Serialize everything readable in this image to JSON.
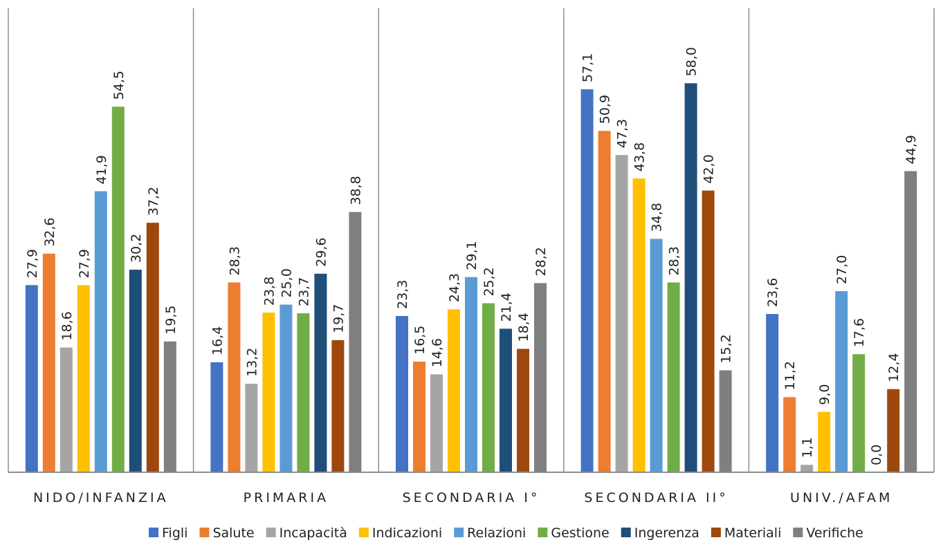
{
  "chart_data": {
    "type": "bar",
    "categories": [
      "NIDO/INFANZIA",
      "PRIMARIA",
      "SECONDARIA I°",
      "SECONDARIA II°",
      "UNIV./AFAM"
    ],
    "series": [
      {
        "name": "Figli",
        "color": "#4472C4",
        "values": [
          27.9,
          16.4,
          23.3,
          57.1,
          23.6
        ],
        "labels": [
          "27,9",
          "16,4",
          "23,3",
          "57,1",
          "23,6"
        ]
      },
      {
        "name": "Salute",
        "color": "#ED7D31",
        "values": [
          32.6,
          28.3,
          16.5,
          50.9,
          11.2
        ],
        "labels": [
          "32,6",
          "28,3",
          "16,5",
          "50,9",
          "11,2"
        ]
      },
      {
        "name": "Incapacità",
        "color": "#A5A5A5",
        "values": [
          18.6,
          13.2,
          14.6,
          47.3,
          1.1
        ],
        "labels": [
          "18,6",
          "13,2",
          "14,6",
          "47,3",
          "1,1"
        ]
      },
      {
        "name": "Indicazioni",
        "color": "#FFC000",
        "values": [
          27.9,
          23.8,
          24.3,
          43.8,
          9.0
        ],
        "labels": [
          "27,9",
          "23,8",
          "24,3",
          "43,8",
          "9,0"
        ]
      },
      {
        "name": "Relazioni",
        "color": "#5B9BD5",
        "values": [
          41.9,
          25.0,
          29.1,
          34.8,
          27.0
        ],
        "labels": [
          "41,9",
          "25,0",
          "29,1",
          "34,8",
          "27,0"
        ]
      },
      {
        "name": "Gestione",
        "color": "#70AD47",
        "values": [
          54.5,
          23.7,
          25.2,
          28.3,
          17.6
        ],
        "labels": [
          "54,5",
          "23,7",
          "25,2",
          "28,3",
          "17,6"
        ]
      },
      {
        "name": "Ingerenza",
        "color": "#1F4E79",
        "values": [
          30.2,
          29.6,
          21.4,
          58.0,
          0.0
        ],
        "labels": [
          "30,2",
          "29,6",
          "21,4",
          "58,0",
          "0,0"
        ]
      },
      {
        "name": "Materiali",
        "color": "#9E480E",
        "values": [
          37.2,
          19.7,
          18.4,
          42.0,
          12.4
        ],
        "labels": [
          "37,2",
          "19,7",
          "18,4",
          "42,0",
          "12,4"
        ]
      },
      {
        "name": "Verifiche",
        "color": "#7F7F7F",
        "values": [
          19.5,
          38.8,
          28.2,
          15.2,
          44.9
        ],
        "labels": [
          "19,5",
          "38,8",
          "28,2",
          "15,2",
          "44,9"
        ]
      }
    ],
    "ylim": [
      0,
      68
    ],
    "legend": "bottom",
    "grid": false
  }
}
